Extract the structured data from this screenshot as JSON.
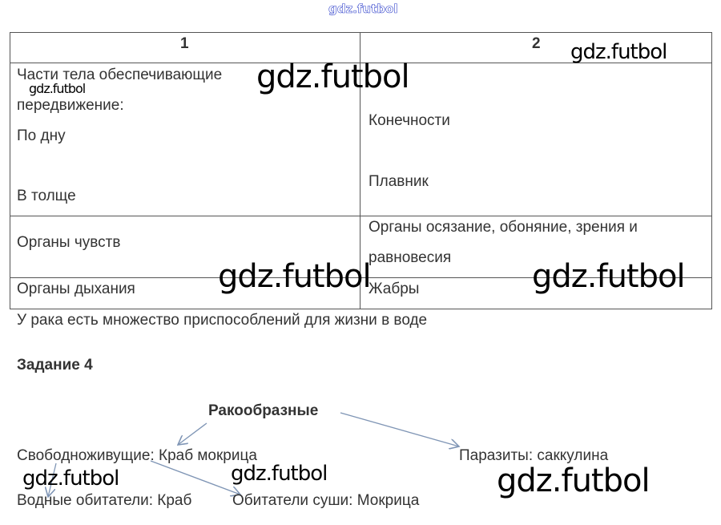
{
  "watermark": "gdz.futbol",
  "table": {
    "headers": [
      "1",
      "2"
    ],
    "rows": [
      {
        "left": [
          "Части тела обеспечивающие",
          "передвижение:",
          "По дну",
          "В толще"
        ],
        "right": [
          "Конечности",
          "Плавник"
        ]
      },
      {
        "left": [
          "Органы чувств"
        ],
        "right": [
          "Органы осязание, обоняние, зрения и",
          "равновесия"
        ]
      },
      {
        "left": [
          "Органы дыхания"
        ],
        "right": [
          "Жабры"
        ]
      }
    ]
  },
  "conclusion": "У рака есть множество приспособлений для жизни в воде",
  "task_title": "Задание 4",
  "diagram": {
    "root": "Ракообразные",
    "free_living": "Свободноживущие: Краб мокрица",
    "parasites": "Паразиты: саккулина",
    "aquatic": "Водные обитатели: Краб",
    "terrestrial": "Обитатели суши: Мокрица",
    "arrow_color": "#7f95b5"
  }
}
